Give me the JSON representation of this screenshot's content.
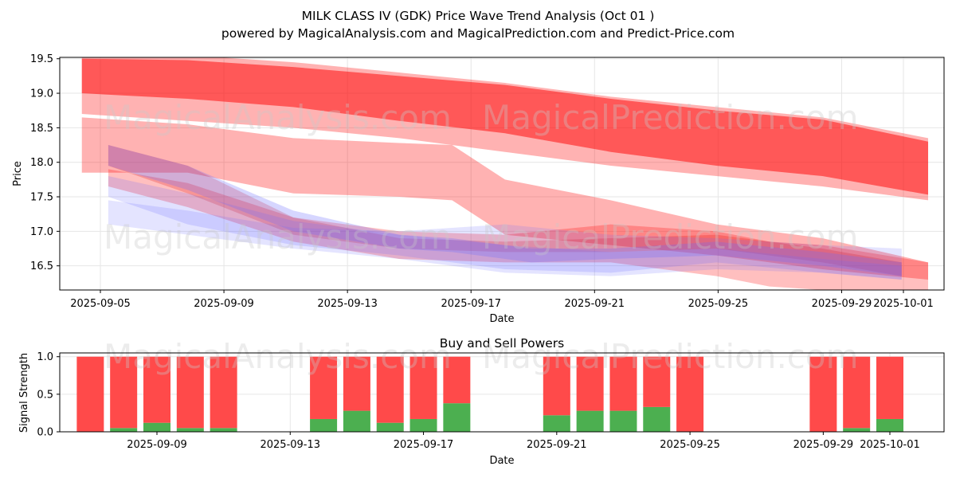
{
  "title_line1": "MILK CLASS IV (GDK) Price Wave Trend Analysis (Oct 01 )",
  "title_line2": "powered by MagicalAnalysis.com and MagicalPrediction.com and Predict-Price.com",
  "watermarks": [
    "MagicalAnalysis.com",
    "MagicalPrediction.com"
  ],
  "chart_data": [
    {
      "type": "area",
      "name": "price-wave-bands",
      "xlabel": "Date",
      "ylabel": "Price",
      "ylim": [
        16.15,
        19.52
      ],
      "xlim_dates": [
        "2025-09-04",
        "2025-10-02"
      ],
      "x_ticks": [
        "2025-09-05",
        "2025-09-09",
        "2025-09-13",
        "2025-09-17",
        "2025-09-21",
        "2025-09-25",
        "2025-09-29",
        "2025-10-01"
      ],
      "y_ticks": [
        16.5,
        17.0,
        17.5,
        18.0,
        18.5,
        19.0,
        19.5
      ],
      "grid": true,
      "bands": [
        {
          "color": "#ff0000",
          "opacity": 0.5,
          "x_days": [
            0,
            4,
            8,
            12,
            16,
            20,
            24,
            28,
            32
          ],
          "upper": [
            19.5,
            19.48,
            19.38,
            19.25,
            19.12,
            18.92,
            18.75,
            18.62,
            18.3
          ],
          "lower": [
            19.0,
            18.92,
            18.8,
            18.6,
            18.42,
            18.15,
            17.95,
            17.8,
            17.53
          ]
        },
        {
          "color": "#ff0000",
          "opacity": 0.3,
          "x_days": [
            0,
            4,
            8,
            12,
            16,
            20,
            24,
            28,
            32
          ],
          "upper": [
            19.55,
            19.55,
            19.45,
            19.3,
            19.15,
            18.95,
            18.8,
            18.65,
            18.35
          ],
          "lower": [
            18.7,
            18.6,
            18.5,
            18.35,
            18.15,
            17.95,
            17.8,
            17.65,
            17.45
          ]
        },
        {
          "color": "#ff0000",
          "opacity": 0.3,
          "x_days": [
            0,
            4,
            8,
            12,
            14,
            16,
            20,
            24,
            28,
            32
          ],
          "upper": [
            18.65,
            18.55,
            18.35,
            18.28,
            18.25,
            17.75,
            17.45,
            17.1,
            16.9,
            16.55
          ],
          "lower": [
            17.85,
            17.85,
            17.55,
            17.5,
            17.45,
            16.95,
            16.8,
            16.65,
            16.45,
            16.3
          ]
        },
        {
          "color": "#ff0000",
          "opacity": 0.25,
          "x_days": [
            1,
            4,
            8,
            12,
            16,
            20,
            24,
            26,
            28,
            32
          ],
          "upper": [
            17.9,
            17.7,
            17.2,
            17.0,
            16.95,
            17.1,
            17.0,
            16.85,
            16.8,
            16.55
          ],
          "lower": [
            17.65,
            17.35,
            16.85,
            16.6,
            16.55,
            16.55,
            16.35,
            16.2,
            16.15,
            16.15
          ]
        },
        {
          "color": "#dd0000",
          "opacity": 0.22,
          "x_days": [
            1,
            4,
            8,
            12,
            16,
            20,
            24,
            28,
            31
          ],
          "upper": [
            18.25,
            17.95,
            17.2,
            16.9,
            16.85,
            16.9,
            16.95,
            16.75,
            16.55
          ],
          "lower": [
            17.95,
            17.55,
            16.95,
            16.75,
            16.7,
            16.7,
            16.75,
            16.55,
            16.35
          ]
        },
        {
          "color": "#6a6aff",
          "opacity": 0.28,
          "x_days": [
            1,
            4,
            8,
            12,
            14,
            17,
            20,
            24,
            28,
            31
          ],
          "upper": [
            18.25,
            17.95,
            17.3,
            16.95,
            16.9,
            16.75,
            16.75,
            16.85,
            16.7,
            16.55
          ],
          "lower": [
            17.95,
            17.6,
            17.0,
            16.75,
            16.7,
            16.55,
            16.6,
            16.65,
            16.5,
            16.35
          ]
        },
        {
          "color": "#6a6aff",
          "opacity": 0.2,
          "x_days": [
            1,
            4,
            8,
            12,
            16,
            20,
            24,
            28,
            31
          ],
          "upper": [
            17.8,
            17.55,
            17.15,
            16.95,
            16.8,
            16.7,
            16.75,
            16.6,
            16.5
          ],
          "lower": [
            17.5,
            17.1,
            16.8,
            16.65,
            16.45,
            16.4,
            16.55,
            16.4,
            16.3
          ]
        },
        {
          "color": "#6a6aff",
          "opacity": 0.18,
          "x_days": [
            1,
            4,
            8,
            12,
            16,
            20,
            24,
            28,
            31
          ],
          "upper": [
            17.45,
            17.3,
            17.05,
            17.0,
            17.1,
            16.95,
            16.9,
            16.8,
            16.75
          ],
          "lower": [
            17.1,
            16.95,
            16.75,
            16.6,
            16.4,
            16.35,
            16.45,
            16.4,
            16.3
          ]
        }
      ]
    },
    {
      "type": "bar",
      "name": "buy-sell-powers",
      "title": "Buy and Sell Powers",
      "xlabel": "Date",
      "ylabel": "Signal Strength",
      "ylim": [
        0,
        1.05
      ],
      "y_ticks": [
        0.0,
        0.5,
        1.0
      ],
      "x_ticks": [
        "2025-09-09",
        "2025-09-13",
        "2025-09-17",
        "2025-09-21",
        "2025-09-25",
        "2025-09-29",
        "2025-10-01"
      ],
      "categories": [
        "2025-09-07",
        "2025-09-08",
        "2025-09-09",
        "2025-09-10",
        "2025-09-11",
        "2025-09-14",
        "2025-09-15",
        "2025-09-16",
        "2025-09-17",
        "2025-09-18",
        "2025-09-21",
        "2025-09-22",
        "2025-09-23",
        "2025-09-24",
        "2025-09-25",
        "2025-09-29",
        "2025-09-30",
        "2025-10-01"
      ],
      "series": [
        {
          "name": "Buy",
          "color": "#4caf50",
          "values": [
            0.0,
            0.05,
            0.12,
            0.05,
            0.05,
            0.17,
            0.28,
            0.12,
            0.17,
            0.38,
            0.22,
            0.28,
            0.28,
            0.33,
            0.0,
            0.0,
            0.05,
            0.17
          ]
        },
        {
          "name": "Sell",
          "color": "#ff4a4a",
          "values": [
            1.0,
            0.95,
            0.88,
            0.95,
            0.95,
            0.83,
            0.72,
            0.88,
            0.83,
            0.62,
            0.78,
            0.72,
            0.72,
            0.67,
            1.0,
            1.0,
            0.95,
            0.83
          ]
        }
      ],
      "grid": true
    }
  ]
}
